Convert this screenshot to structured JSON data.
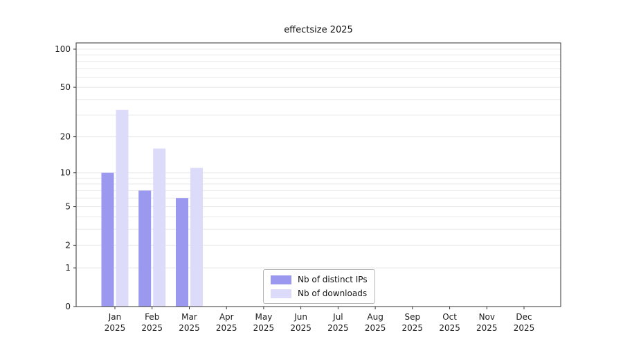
{
  "chart_data": {
    "type": "bar",
    "title": "effectsize 2025",
    "x_year": "2025",
    "categories": [
      "Jan",
      "Feb",
      "Mar",
      "Apr",
      "May",
      "Jun",
      "Jul",
      "Aug",
      "Sep",
      "Oct",
      "Nov",
      "Dec"
    ],
    "series": [
      {
        "name": "Nb of distinct IPs",
        "color": "#9a99ef",
        "values": [
          10,
          7,
          6,
          0,
          0,
          0,
          0,
          0,
          0,
          0,
          0,
          0
        ]
      },
      {
        "name": "Nb of downloads",
        "color": "#dcdcfa",
        "values": [
          33,
          16,
          11,
          0,
          0,
          0,
          0,
          0,
          0,
          0,
          0,
          0
        ]
      }
    ],
    "y_ticks": [
      0,
      1,
      2,
      5,
      10,
      20,
      50,
      100
    ],
    "y_minor_gridlines": [
      1,
      2,
      3,
      4,
      5,
      6,
      7,
      8,
      9,
      10,
      20,
      30,
      40,
      50,
      60,
      70,
      80,
      90,
      100
    ],
    "y_scale": "log(v+1)",
    "ylim": [
      0,
      112
    ],
    "grid": true,
    "legend_position": "lower center",
    "colors": {
      "grid": "#e8e8e8",
      "spine": "#333333",
      "text": "#1a1a1a"
    }
  }
}
